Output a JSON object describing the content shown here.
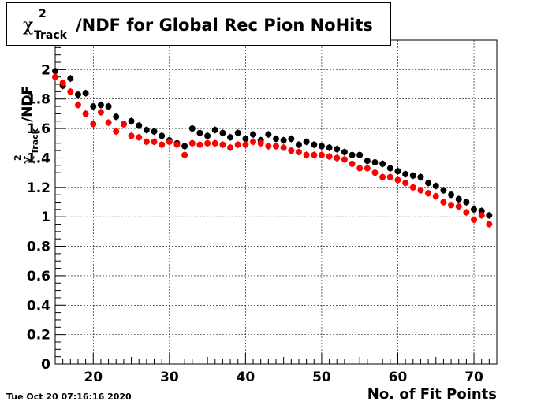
{
  "title": {
    "symbol": "χ",
    "superscript": "2",
    "subscript": "Track",
    "text": "/NDF for Global Rec Pion NoHits"
  },
  "timestamp": "Tue Oct 20 07:16:16 2020",
  "chart_data": {
    "type": "scatter",
    "title": "χ²_Track/NDF for Global Rec Pion NoHits",
    "xlabel": "No. of Fit Points",
    "ylabel": "χ²_Track/NDF",
    "ylabel_parts": {
      "symbol": "χ",
      "superscript": "2",
      "subscript": "Track",
      "text": "/NDF"
    },
    "xlim": [
      15,
      73
    ],
    "ylim": [
      0,
      2.2
    ],
    "xticks": [
      20,
      30,
      40,
      50,
      60,
      70
    ],
    "yticks": [
      0,
      0.2,
      0.4,
      0.6,
      0.8,
      1,
      1.2,
      1.4,
      1.6,
      1.8,
      2
    ],
    "ytick_labels": [
      "0",
      "0.2",
      "0.4",
      "0.6",
      "0.8",
      "1",
      "1.2",
      "1.4",
      "1.6",
      "1.8",
      "2"
    ],
    "grid": true,
    "series": [
      {
        "color": "#000000",
        "x": [
          15,
          16,
          17,
          18,
          19,
          20,
          21,
          22,
          23,
          24,
          25,
          26,
          27,
          28,
          29,
          30,
          31,
          32,
          33,
          34,
          35,
          36,
          37,
          38,
          39,
          40,
          41,
          42,
          43,
          44,
          45,
          46,
          47,
          48,
          49,
          50,
          51,
          52,
          53,
          54,
          55,
          56,
          57,
          58,
          59,
          60,
          61,
          62,
          63,
          64,
          65,
          66,
          67,
          68,
          69,
          70,
          71,
          72
        ],
        "y": [
          1.99,
          1.89,
          1.94,
          1.83,
          1.84,
          1.75,
          1.76,
          1.75,
          1.68,
          1.63,
          1.65,
          1.62,
          1.59,
          1.58,
          1.55,
          1.52,
          1.5,
          1.48,
          1.6,
          1.57,
          1.55,
          1.59,
          1.57,
          1.54,
          1.57,
          1.53,
          1.56,
          1.52,
          1.56,
          1.53,
          1.52,
          1.53,
          1.49,
          1.51,
          1.49,
          1.48,
          1.47,
          1.46,
          1.44,
          1.42,
          1.42,
          1.38,
          1.37,
          1.36,
          1.33,
          1.31,
          1.29,
          1.28,
          1.27,
          1.23,
          1.21,
          1.18,
          1.15,
          1.12,
          1.1,
          1.05,
          1.04,
          1.01
        ]
      },
      {
        "color": "#ff0000",
        "x": [
          15,
          16,
          17,
          18,
          19,
          20,
          21,
          22,
          23,
          24,
          25,
          26,
          27,
          28,
          29,
          30,
          31,
          32,
          33,
          34,
          35,
          36,
          37,
          38,
          39,
          40,
          41,
          42,
          43,
          44,
          45,
          46,
          47,
          48,
          49,
          50,
          51,
          52,
          53,
          54,
          55,
          56,
          57,
          58,
          59,
          60,
          61,
          62,
          63,
          64,
          65,
          66,
          67,
          68,
          69,
          70,
          71,
          72
        ],
        "y": [
          1.95,
          1.91,
          1.85,
          1.76,
          1.7,
          1.63,
          1.71,
          1.64,
          1.58,
          1.63,
          1.55,
          1.54,
          1.51,
          1.51,
          1.49,
          1.51,
          1.49,
          1.42,
          1.5,
          1.49,
          1.5,
          1.5,
          1.49,
          1.47,
          1.49,
          1.49,
          1.51,
          1.5,
          1.48,
          1.48,
          1.47,
          1.45,
          1.44,
          1.42,
          1.42,
          1.42,
          1.41,
          1.4,
          1.39,
          1.36,
          1.33,
          1.33,
          1.3,
          1.27,
          1.27,
          1.25,
          1.23,
          1.2,
          1.18,
          1.16,
          1.14,
          1.1,
          1.08,
          1.07,
          1.03,
          0.98,
          1.01,
          0.95
        ]
      }
    ]
  }
}
